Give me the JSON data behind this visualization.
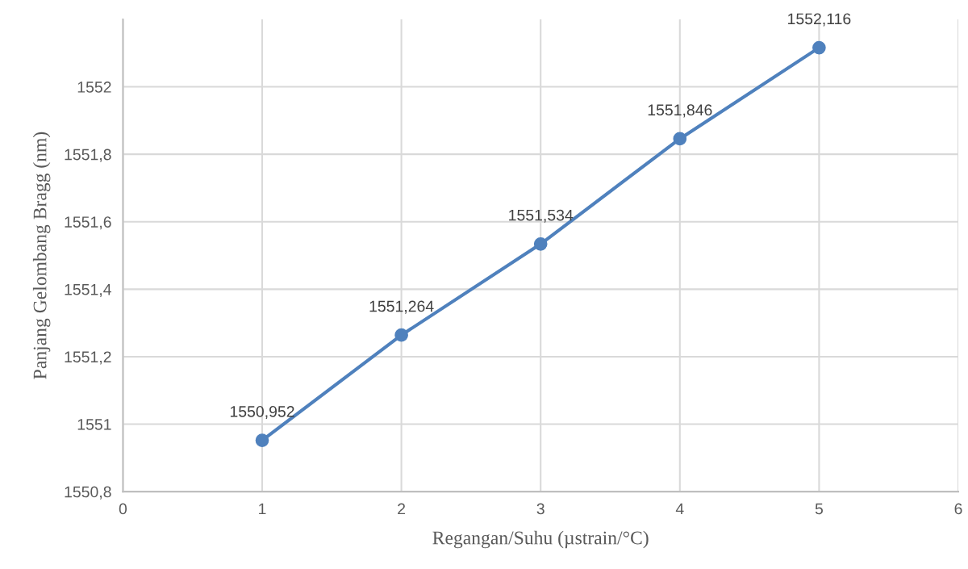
{
  "chart_data": {
    "type": "line",
    "xlabel": "Regangan/Suhu (µstrain/°C)",
    "ylabel": "Panjang Gelombang Bragg (nm)",
    "x": [
      1,
      2,
      3,
      4,
      5
    ],
    "series": [
      {
        "color": "#4f81bd",
        "values": [
          1550.952,
          1551.264,
          1551.534,
          1551.846,
          1552.116
        ],
        "value_labels": [
          "1550,952",
          "1551,264",
          "1551,534",
          "1551,846",
          "1552,116"
        ]
      }
    ],
    "xlim": [
      0,
      6
    ],
    "xticks": [
      0,
      1,
      2,
      3,
      4,
      5,
      6
    ],
    "ylim": [
      1550.8,
      1552.2
    ],
    "yticks": [
      {
        "value": 1550.8,
        "label": "1550,8"
      },
      {
        "value": 1551,
        "label": "1551"
      },
      {
        "value": 1551.2,
        "label": "1551,2"
      },
      {
        "value": 1551.4,
        "label": "1551,4"
      },
      {
        "value": 1551.6,
        "label": "1551,6"
      },
      {
        "value": 1551.8,
        "label": "1551,8"
      },
      {
        "value": 1552,
        "label": "1552"
      }
    ],
    "grid": true,
    "marker": "circle",
    "line_style": "solid"
  }
}
